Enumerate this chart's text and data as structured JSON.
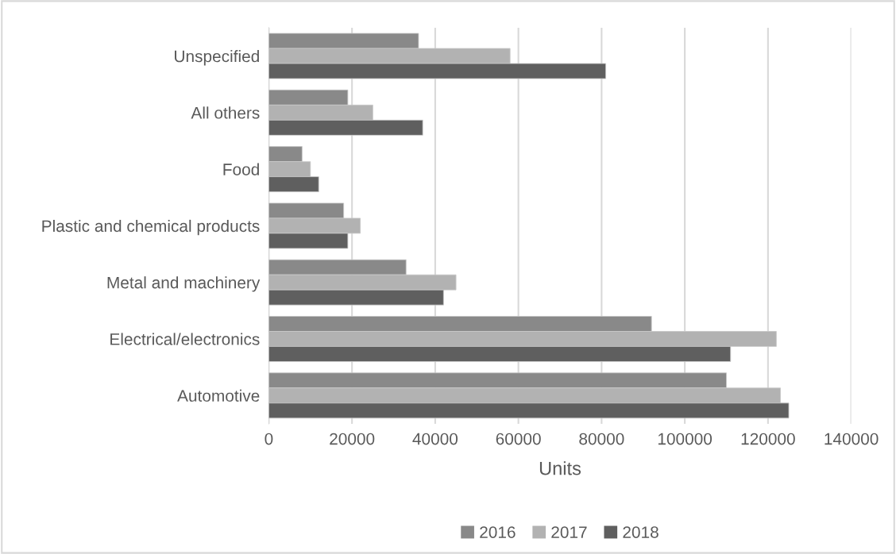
{
  "chart_data": {
    "type": "bar",
    "orientation": "horizontal",
    "xlabel": "Units",
    "categories": [
      "Unspecified",
      "All others",
      "Food",
      "Plastic and chemical products",
      "Metal and machinery",
      "Electrical/electronics",
      "Automotive"
    ],
    "series": [
      {
        "name": "2016",
        "color": "#898989",
        "values": [
          36000,
          19000,
          8000,
          18000,
          33000,
          92000,
          110000
        ]
      },
      {
        "name": "2017",
        "color": "#b2b2b2",
        "values": [
          58000,
          25000,
          10000,
          22000,
          45000,
          122000,
          123000
        ]
      },
      {
        "name": "2018",
        "color": "#5f5f5f",
        "values": [
          81000,
          37000,
          12000,
          19000,
          42000,
          111000,
          125000
        ]
      }
    ],
    "xlim": [
      0,
      140000
    ],
    "xticks": [
      0,
      20000,
      40000,
      60000,
      80000,
      100000,
      120000,
      140000
    ],
    "grid": "x",
    "legend": "bottom"
  }
}
